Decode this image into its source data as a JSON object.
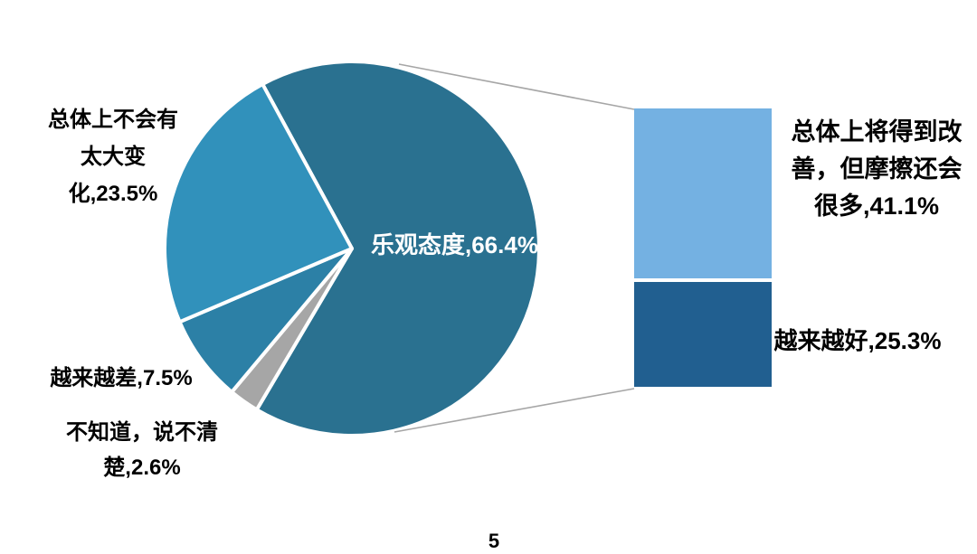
{
  "page": {
    "number": "5"
  },
  "colors": {
    "slice_main": "#2A7190",
    "slice_nochange": "#3191BB",
    "slice_worse": "#2C80A6",
    "slice_unknown": "#A6A6A6",
    "bar_top": "#74B1E2",
    "bar_bottom": "#215F90",
    "connector": "#A6A6A6",
    "text": "#000000",
    "label_on_dark": "#FFFFFF"
  },
  "chart_data": {
    "type": "pie",
    "variant": "bar-of-pie",
    "unit": "%",
    "title": "",
    "legend": "none",
    "grid": false,
    "start_angle_deg": -28.5,
    "slices_clockwise": [
      {
        "label": "乐观态度",
        "value": 66.4,
        "color_key": "slice_main"
      },
      {
        "label": "不知道，说不清楚",
        "value": 2.6,
        "color_key": "slice_unknown"
      },
      {
        "label": "越来越差",
        "value": 7.5,
        "color_key": "slice_worse"
      },
      {
        "label": "总体上不会有太大变化",
        "value": 23.5,
        "color_key": "slice_nochange"
      }
    ],
    "breakdown_bar": {
      "parent_slice": "乐观态度",
      "segments_top_to_bottom": [
        {
          "label": "总体上将得到改善，但摩擦还会很多",
          "value": 41.1,
          "color_key": "bar_top"
        },
        {
          "label": "越来越好",
          "value": 25.3,
          "color_key": "bar_bottom"
        }
      ]
    }
  },
  "labels": {
    "slice_main": "乐观态度,66.4%",
    "slice_nochange": "总体上不会有\n太大变\n化,23.5%",
    "slice_worse": "越来越差,7.5%",
    "slice_unknown": "不知道，说不清\n楚,2.6%",
    "bar_top": "总体上将得到改\n善，但摩擦还会\n很多,41.1%",
    "bar_bottom": "越来越好,25.3%"
  }
}
